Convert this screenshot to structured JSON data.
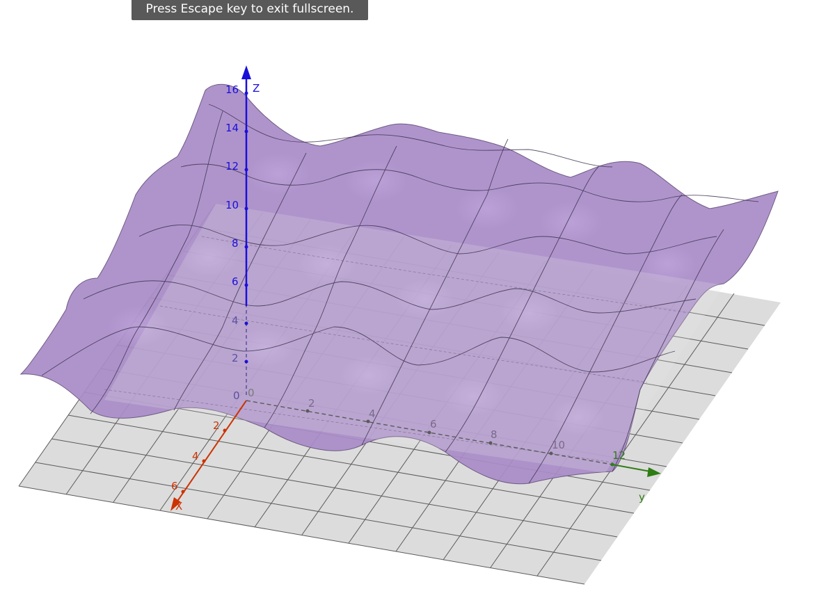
{
  "notification": {
    "text": "Press Escape key to exit fullscreen."
  },
  "axes": {
    "x": {
      "label": "x",
      "color": "#cc3300",
      "ticks": [
        "2",
        "4",
        "6"
      ],
      "origin_label": "0"
    },
    "y": {
      "label": "y",
      "color": "#2e7d12",
      "ticks": [
        "2",
        "4",
        "6",
        "8",
        "10",
        "12"
      ]
    },
    "z": {
      "label": "z",
      "color": "#1a0fd9",
      "ticks": [
        "2",
        "4",
        "6",
        "8",
        "10",
        "12",
        "14",
        "16"
      ],
      "origin_label": "0"
    }
  },
  "surface": {
    "color": "#a98cc8",
    "edge_color": "#4a3b5a"
  },
  "plane": {
    "color": "#dcdcdc",
    "grid_color": "#555555"
  }
}
